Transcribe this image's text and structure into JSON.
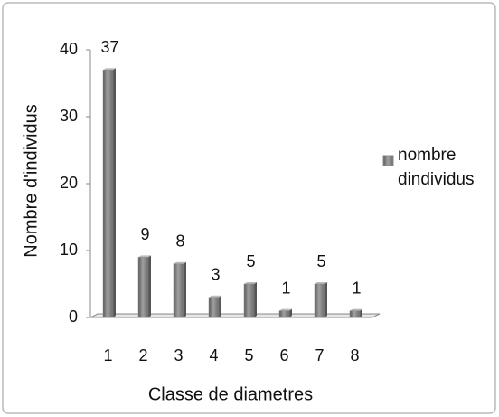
{
  "chart_data": {
    "type": "bar",
    "categories": [
      "1",
      "2",
      "3",
      "4",
      "5",
      "6",
      "7",
      "8"
    ],
    "series": [
      {
        "name": "nombre dindividus",
        "color": "#8a8a8a",
        "values": [
          37,
          9,
          8,
          3,
          5,
          1,
          5,
          1
        ]
      }
    ],
    "xlabel": "Classe de diametres",
    "ylabel": "Nombre d'individus",
    "ylim": [
      0,
      40
    ],
    "yticks": [
      0,
      10,
      20,
      30,
      40
    ],
    "grid": false,
    "legend": "right"
  }
}
